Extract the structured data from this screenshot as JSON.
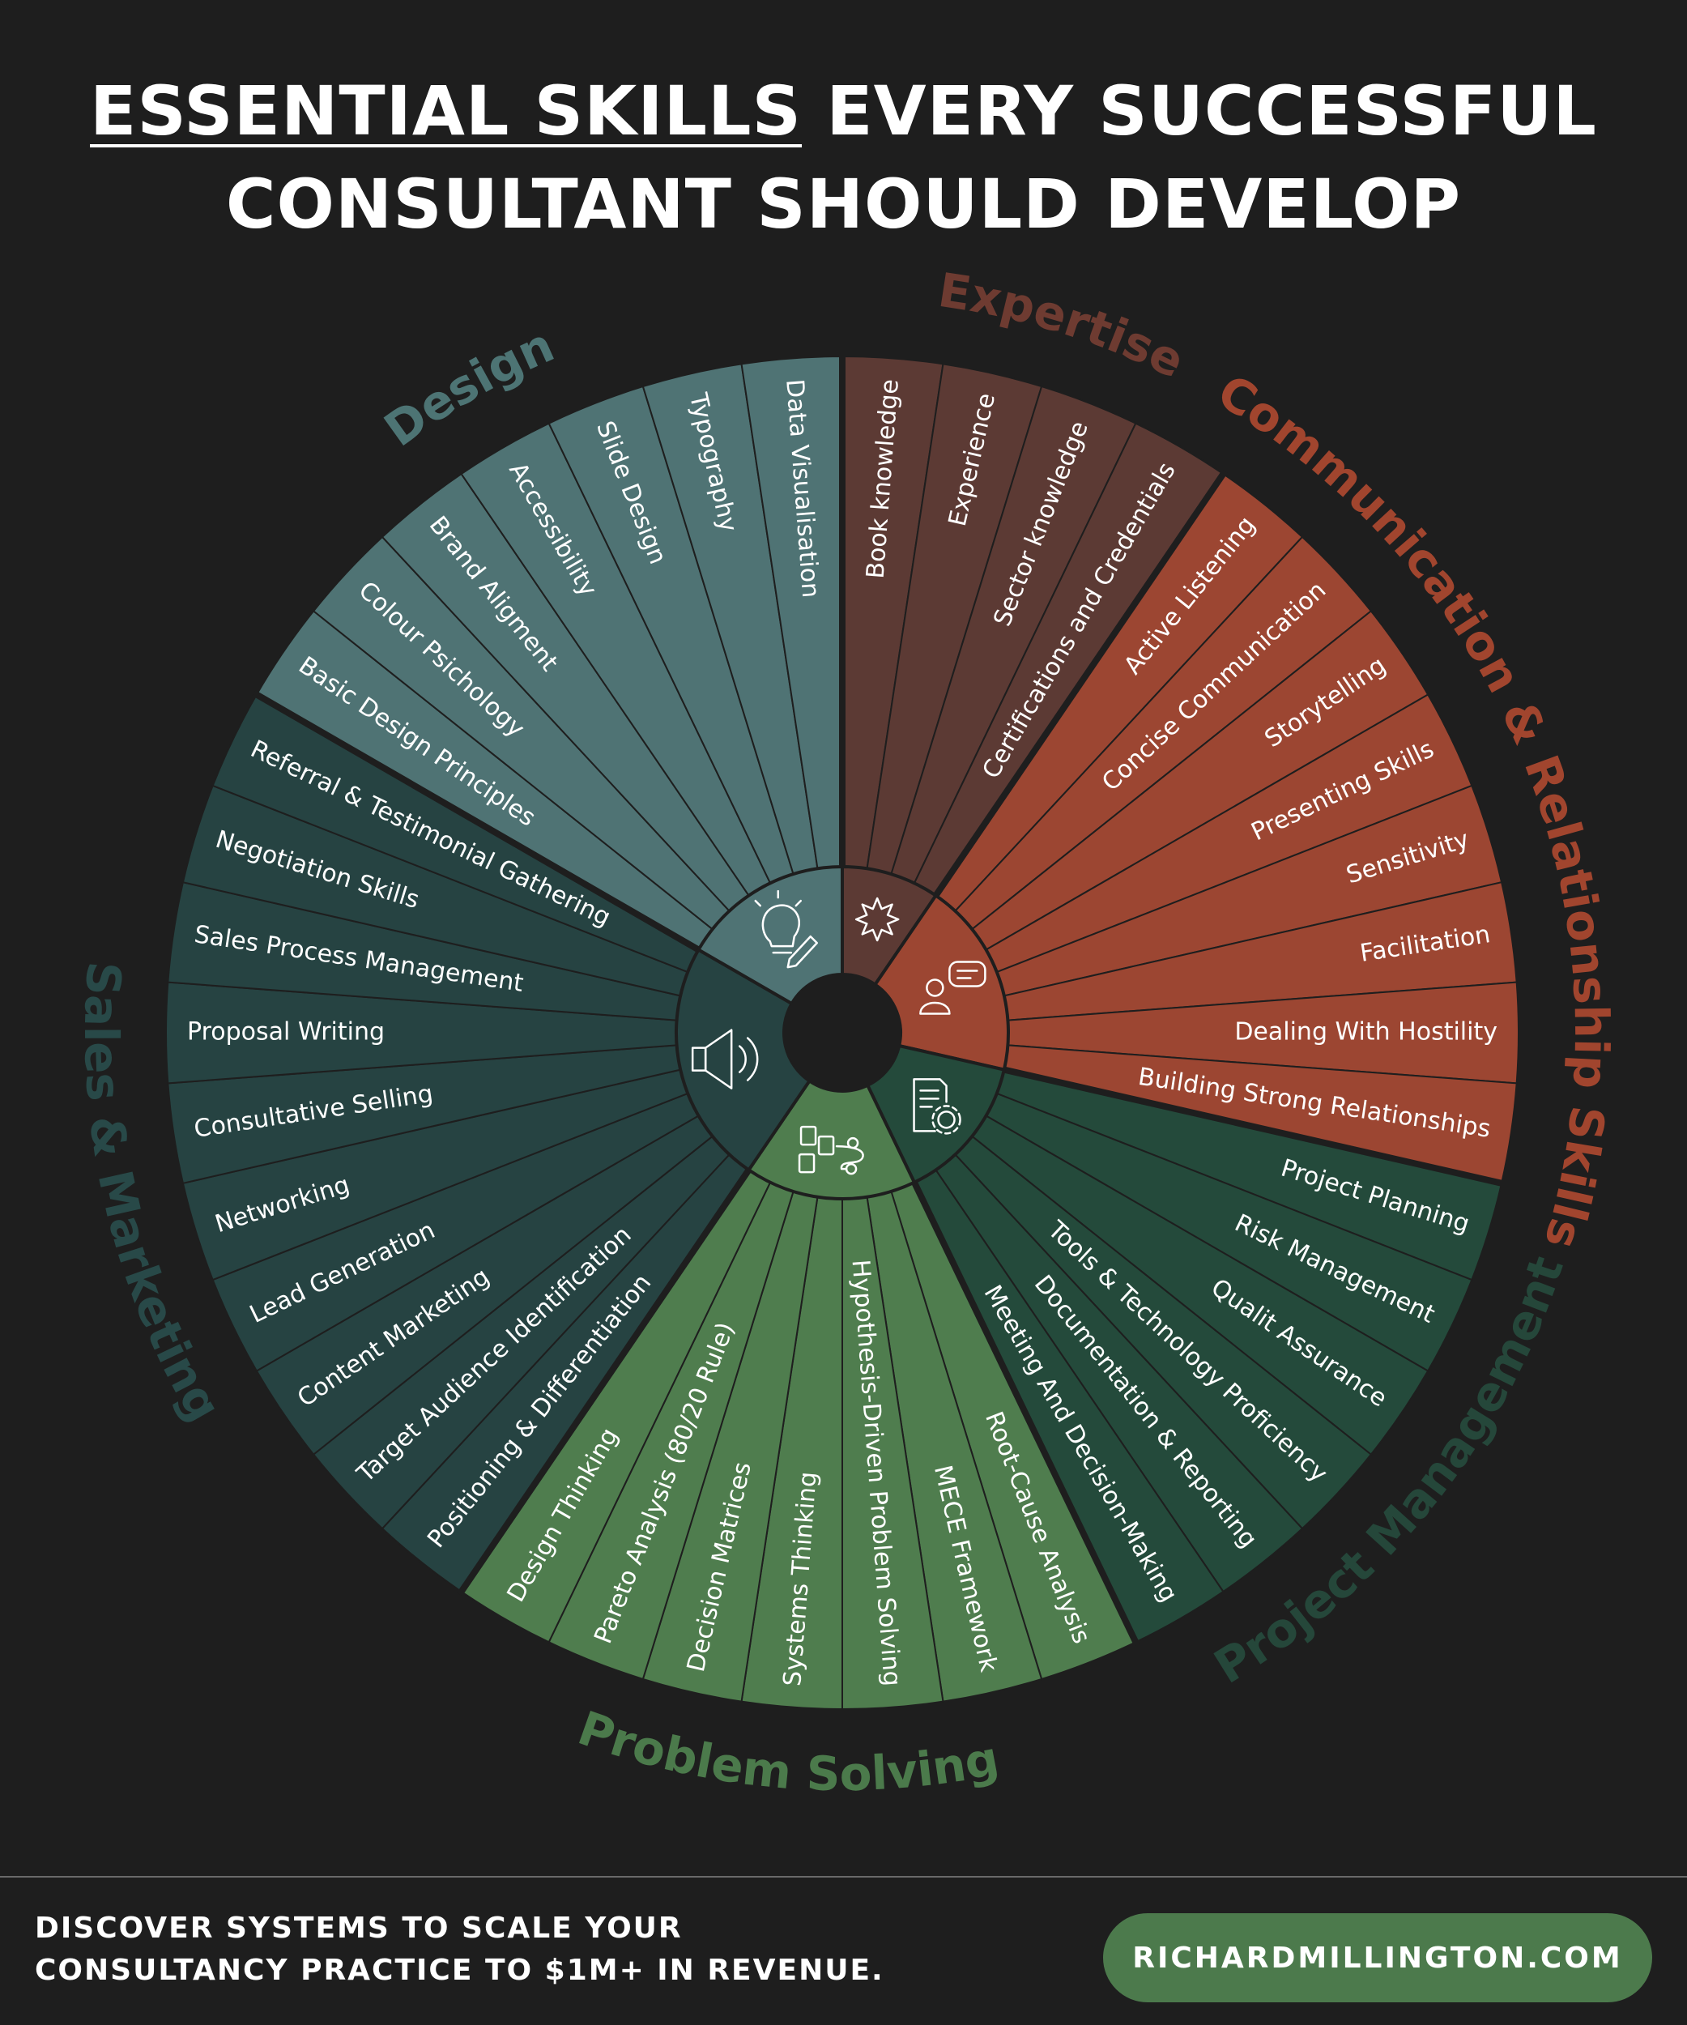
{
  "title": {
    "highlight": "ESSENTIAL SKILLS",
    "line1_rest": " EVERY SUCCESSFUL",
    "line2": "CONSULTANT SHOULD DEVELOP"
  },
  "categories": [
    {
      "name": "Expertise",
      "color": "#5c3a34",
      "label_color": "#6e3b31",
      "icon": "star-badge-icon",
      "skills": [
        "Book knowledge",
        "Experience",
        "Sector knowledge",
        "Certifications and Credentials"
      ]
    },
    {
      "name": "Communication & Relationship Skills",
      "color": "#9c4632",
      "label_color": "#a1452e",
      "icon": "chat-person-icon",
      "skills": [
        "Active Listening",
        "Concise Communication",
        "Storytelling",
        "Presenting Skills",
        "Sensitivity",
        "Facilitation",
        "Dealing With Hostility",
        "Building Strong Relationships"
      ]
    },
    {
      "name": "Project Management",
      "color": "#244a3b",
      "label_color": "#25473a",
      "icon": "document-gear-icon",
      "skills": [
        "Project Planning",
        "Risk Management",
        "Qualit Assurance",
        "Tools & Technology Proficiency",
        "Documentation & Reporting",
        "Meeting And Decision-Making"
      ]
    },
    {
      "name": "Problem Solving",
      "color": "#4f7d4e",
      "label_color": "#4b7a4b",
      "icon": "flowchart-icon",
      "skills": [
        "Root-Cause Analysis",
        "MECE Framework",
        "Hypothesis-Driven Problem Solving",
        "Systems Thinking",
        "Decision Matrices",
        "Pareto Analysis (80/20 Rule)",
        "Design Thinking"
      ]
    },
    {
      "name": "Sales & Marketing",
      "color": "#264342",
      "label_color": "#284948",
      "icon": "megaphone-icon",
      "skills": [
        "Positioning & Differentiation",
        "Target Audience Identification",
        "Content Marketing",
        "Lead Generation",
        "Networking",
        "Consultative Selling",
        "Proposal Writing",
        "Sales Process Management",
        "Negotiation Skills",
        "Referral & Testimonial Gathering"
      ]
    },
    {
      "name": "Design",
      "color": "#4f7374",
      "label_color": "#4d7474",
      "icon": "lightbulb-pencil-icon",
      "skills": [
        "Basic Design Principles",
        "Colour Psichology",
        "Brand Aligment",
        "Accessibility",
        "Slide Design",
        "Typography",
        "Data Visualisation"
      ]
    }
  ],
  "footer": {
    "line1": "DISCOVER SYSTEMS TO SCALE YOUR",
    "line2": "CONSULTANCY PRACTICE TO $1M+ IN REVENUE.",
    "cta": "RICHARDMILLINGTON.COM"
  }
}
